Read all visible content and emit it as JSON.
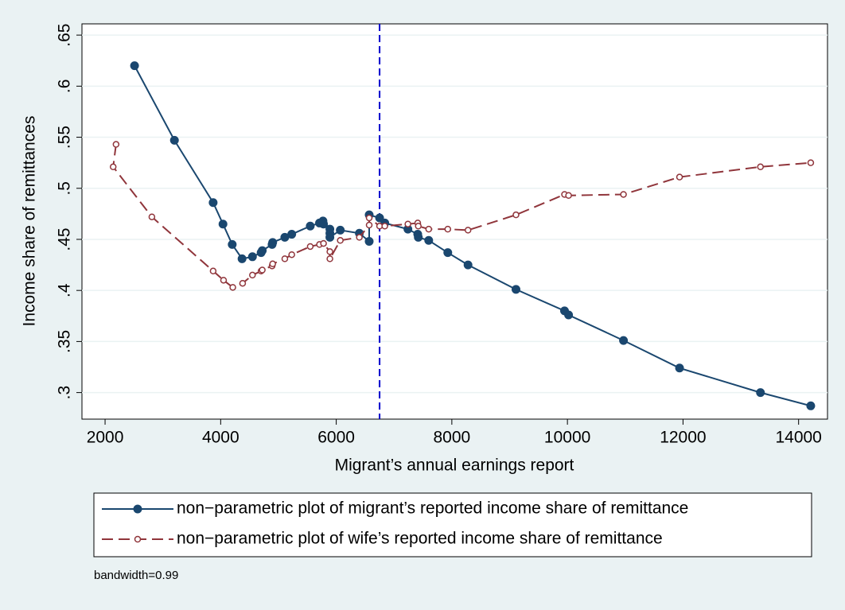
{
  "chart_data": {
    "type": "line",
    "x_label": "Migrant’s annual earnings report",
    "y_label": "Income share of remittances",
    "note": "bandwidth=0.99",
    "xlim": [
      1600,
      14500
    ],
    "xticks": [
      2000,
      4000,
      6000,
      8000,
      10000,
      12000,
      14000
    ],
    "ylim": [
      0.274,
      0.661
    ],
    "yticks": [
      {
        "value": 0.3,
        "label": ".3"
      },
      {
        "value": 0.35,
        "label": ".35"
      },
      {
        "value": 0.4,
        "label": ".4"
      },
      {
        "value": 0.45,
        "label": ".45"
      },
      {
        "value": 0.5,
        "label": ".5"
      },
      {
        "value": 0.55,
        "label": ".55"
      },
      {
        "value": 0.6,
        "label": ".6"
      },
      {
        "value": 0.65,
        "label": ".65"
      }
    ],
    "grid": true,
    "reference_line": {
      "x": 6750,
      "color": "#0000cc"
    },
    "series": [
      {
        "name": "non−parametric plot of migrant’s reported income share of remittance",
        "color": "#1a476f",
        "dashed": false,
        "hollow": false,
        "x": [
          2510,
          3200,
          3870,
          4040,
          4200,
          4370,
          4550,
          4700,
          4720,
          4890,
          4900,
          5110,
          5230,
          5550,
          5710,
          5770,
          5780,
          5890,
          5890,
          5890,
          6070,
          6400,
          6570,
          6570,
          6750,
          6840,
          7240,
          7410,
          7420,
          7600,
          7930,
          8280,
          9110,
          9950,
          10020,
          10970,
          11940,
          13340,
          14210
        ],
        "values": [
          0.62,
          0.547,
          0.486,
          0.465,
          0.445,
          0.431,
          0.433,
          0.437,
          0.439,
          0.445,
          0.447,
          0.452,
          0.455,
          0.463,
          0.466,
          0.468,
          0.465,
          0.46,
          0.456,
          0.452,
          0.459,
          0.456,
          0.448,
          0.474,
          0.471,
          0.466,
          0.46,
          0.455,
          0.452,
          0.449,
          0.437,
          0.425,
          0.401,
          0.38,
          0.376,
          0.351,
          0.324,
          0.3,
          0.287
        ]
      },
      {
        "name": "non−parametric plot of wife’s reported income share of remittance",
        "color": "#90353b",
        "dashed": true,
        "hollow": true,
        "x": [
          2190,
          2140,
          2810,
          3870,
          4050,
          4210,
          4380,
          4550,
          4700,
          4720,
          4890,
          4900,
          5110,
          5230,
          5550,
          5710,
          5780,
          5890,
          5890,
          6070,
          6400,
          6570,
          6570,
          6750,
          6840,
          7240,
          7410,
          7420,
          7600,
          7930,
          8280,
          9110,
          9950,
          10020,
          10970,
          11940,
          13340,
          14210
        ],
        "values": [
          0.543,
          0.521,
          0.472,
          0.419,
          0.41,
          0.403,
          0.407,
          0.415,
          0.419,
          0.42,
          0.424,
          0.426,
          0.431,
          0.435,
          0.443,
          0.445,
          0.446,
          0.438,
          0.431,
          0.449,
          0.452,
          0.464,
          0.471,
          0.463,
          0.463,
          0.465,
          0.466,
          0.463,
          0.46,
          0.46,
          0.459,
          0.474,
          0.494,
          0.493,
          0.494,
          0.511,
          0.521,
          0.525
        ]
      }
    ]
  }
}
